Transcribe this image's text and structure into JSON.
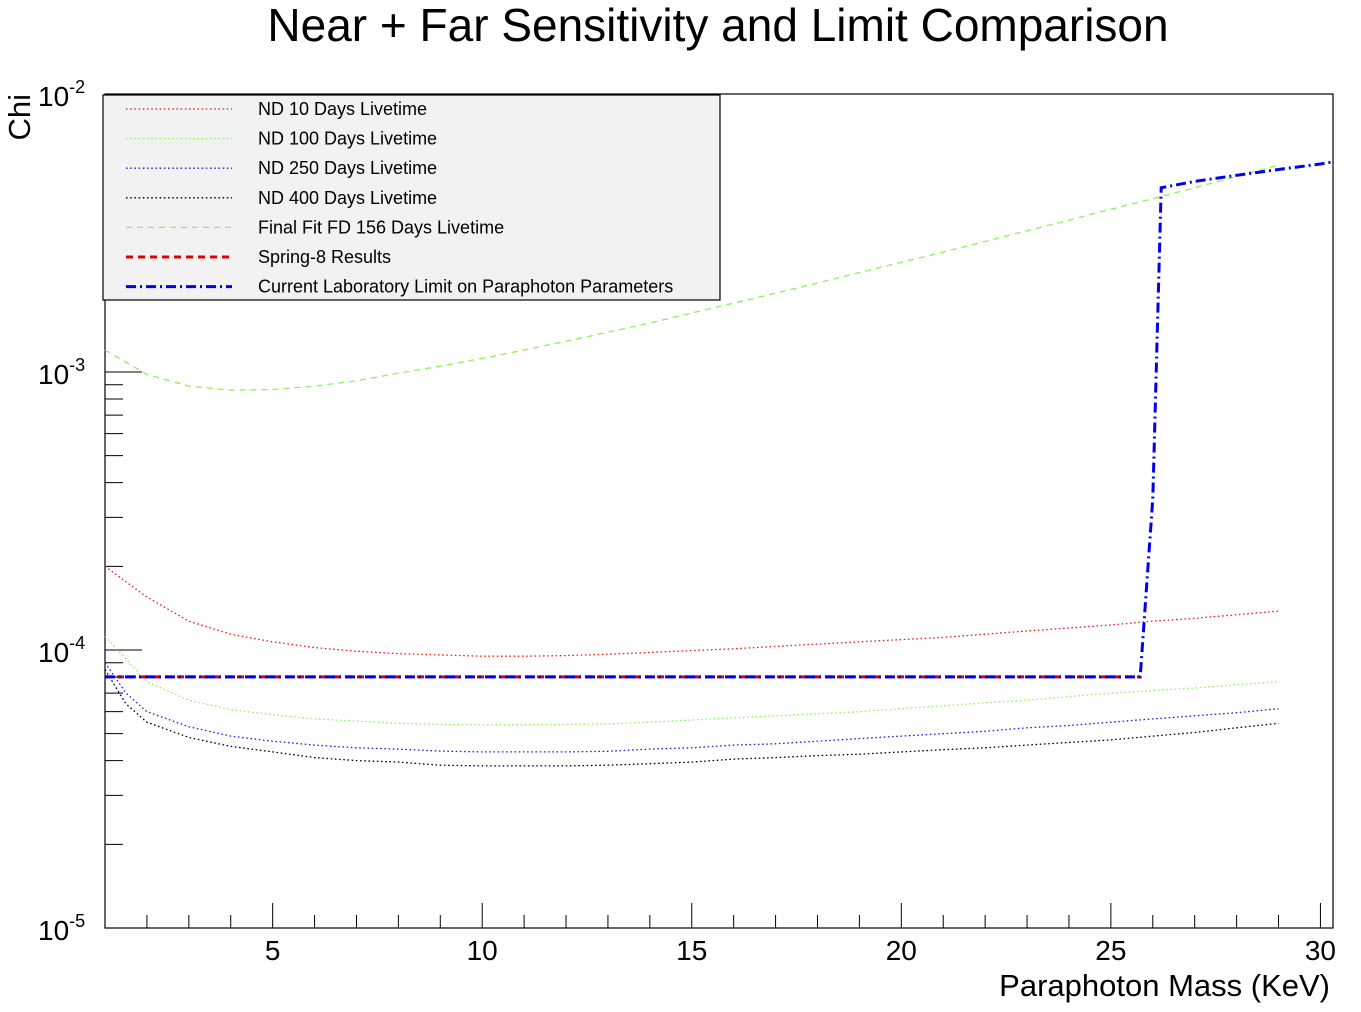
{
  "chart_data": {
    "type": "line",
    "title": "Near + Far Sensitivity and Limit Comparison",
    "xlabel": "Paraphoton Mass (KeV)",
    "ylabel": "Chi",
    "xlim": [
      1,
      30.3
    ],
    "ylim": [
      1e-05,
      0.01
    ],
    "yscale": "log",
    "grid": false,
    "legend_position": "top-left",
    "x_ticks": [
      {
        "value": 5,
        "label": "5"
      },
      {
        "value": 10,
        "label": "10"
      },
      {
        "value": 15,
        "label": "15"
      },
      {
        "value": 20,
        "label": "20"
      },
      {
        "value": 25,
        "label": "25"
      },
      {
        "value": 30,
        "label": "30"
      }
    ],
    "y_ticks": [
      {
        "value": 1e-05,
        "base": "10",
        "exp": "-5"
      },
      {
        "value": 0.0001,
        "base": "10",
        "exp": "-4"
      },
      {
        "value": 0.001,
        "base": "10",
        "exp": "-3"
      },
      {
        "value": 0.01,
        "base": "10",
        "exp": "-2"
      }
    ],
    "series": [
      {
        "name": "ND 10 Days Livetime",
        "color": "#e8211c",
        "dash": "dotted",
        "x": [
          1,
          2,
          3,
          4,
          5,
          6,
          7,
          8,
          9,
          10,
          11,
          12,
          13,
          14,
          15,
          16,
          17,
          18,
          19,
          20,
          21,
          22,
          23,
          24,
          25,
          26,
          27,
          28,
          29
        ],
        "y": [
          0.0002,
          0.000155,
          0.000127,
          0.000114,
          0.000107,
          0.000102,
          9.9e-05,
          9.7e-05,
          9.6e-05,
          9.5e-05,
          9.5e-05,
          9.55e-05,
          9.65e-05,
          9.8e-05,
          9.95e-05,
          0.000101,
          0.000103,
          0.000105,
          0.000107,
          0.000109,
          0.000111,
          0.000114,
          0.000117,
          0.00012,
          0.000123,
          0.000127,
          0.00013,
          0.000134,
          0.000138
        ]
      },
      {
        "name": "ND 100 Days Livetime",
        "color": "#8ff05a",
        "dash": "dotted",
        "x": [
          1,
          2,
          3,
          4,
          5,
          6,
          7,
          8,
          9,
          10,
          11,
          12,
          13,
          14,
          15,
          16,
          17,
          18,
          19,
          20,
          21,
          22,
          23,
          24,
          25,
          26,
          27,
          28,
          29
        ],
        "y": [
          0.000112,
          7.7e-05,
          6.6e-05,
          6.1e-05,
          5.85e-05,
          5.65e-05,
          5.55e-05,
          5.45e-05,
          5.4e-05,
          5.38e-05,
          5.38e-05,
          5.4e-05,
          5.42e-05,
          5.5e-05,
          5.6e-05,
          5.7e-05,
          5.8e-05,
          5.9e-05,
          6e-05,
          6.15e-05,
          6.3e-05,
          6.45e-05,
          6.6e-05,
          6.8e-05,
          7e-05,
          7.15e-05,
          7.3e-05,
          7.5e-05,
          7.7e-05
        ]
      },
      {
        "name": "ND 250 Days Livetime",
        "color": "#2020e8",
        "dash": "dotted",
        "x": [
          1,
          1.5,
          2,
          3,
          4,
          5,
          6,
          7,
          8,
          9,
          10,
          11,
          12,
          13,
          14,
          15,
          16,
          17,
          18,
          19,
          20,
          21,
          22,
          23,
          24,
          25,
          26,
          27,
          28,
          29
        ],
        "y": [
          9e-05,
          7e-05,
          6e-05,
          5.3e-05,
          4.9e-05,
          4.7e-05,
          4.55e-05,
          4.45e-05,
          4.4e-05,
          4.33e-05,
          4.3e-05,
          4.3e-05,
          4.3e-05,
          4.32e-05,
          4.4e-05,
          4.45e-05,
          4.55e-05,
          4.6e-05,
          4.7e-05,
          4.8e-05,
          4.9e-05,
          5e-05,
          5.1e-05,
          5.25e-05,
          5.35e-05,
          5.5e-05,
          5.65e-05,
          5.8e-05,
          5.95e-05,
          6.15e-05
        ]
      },
      {
        "name": "ND 400 Days Livetime",
        "color": "#000000",
        "dash": "dotted",
        "x": [
          1,
          1.5,
          2,
          3,
          4,
          5,
          6,
          7,
          8,
          9,
          10,
          11,
          12,
          13,
          14,
          15,
          16,
          17,
          18,
          19,
          20,
          21,
          22,
          23,
          24,
          25,
          26,
          27,
          28,
          29
        ],
        "y": [
          8.5e-05,
          6.4e-05,
          5.5e-05,
          4.85e-05,
          4.5e-05,
          4.3e-05,
          4.1e-05,
          4e-05,
          3.95e-05,
          3.85e-05,
          3.83e-05,
          3.83e-05,
          3.83e-05,
          3.85e-05,
          3.9e-05,
          3.95e-05,
          4.05e-05,
          4.1e-05,
          4.17e-05,
          4.22e-05,
          4.3e-05,
          4.38e-05,
          4.45e-05,
          4.55e-05,
          4.65e-05,
          4.75e-05,
          4.9e-05,
          5.05e-05,
          5.25e-05,
          5.45e-05
        ]
      },
      {
        "name": "Final Fit FD 156 Days Livetime",
        "color": "#8ff05a",
        "dash": "dashed",
        "x": [
          1,
          2,
          3,
          4,
          5,
          6,
          7,
          8,
          9,
          10,
          11,
          12,
          13,
          14,
          15,
          16,
          17,
          18,
          19,
          20,
          21,
          22,
          23,
          24,
          25,
          26,
          27,
          28,
          29
        ],
        "y": [
          0.0012,
          0.00098,
          0.00089,
          0.00086,
          0.000865,
          0.00089,
          0.00093,
          0.00099,
          0.00105,
          0.00112,
          0.0012,
          0.00129,
          0.00139,
          0.0015,
          0.00163,
          0.00177,
          0.00192,
          0.00209,
          0.00228,
          0.00248,
          0.0027,
          0.00295,
          0.00322,
          0.00352,
          0.00385,
          0.0042,
          0.0046,
          0.00505,
          0.00555
        ]
      },
      {
        "name": "Spring-8 Results",
        "color": "#dd0000",
        "dash": "thick-dashed",
        "x": [
          1,
          25.7
        ],
        "y": [
          8e-05,
          8e-05
        ]
      },
      {
        "name": "Current Laboratory Limit on Paraphoton Parameters",
        "color": "#0000ee",
        "dash": "dashdot",
        "x": [
          1,
          25.7,
          26.0,
          26.2,
          27,
          28,
          29,
          30,
          30.3
        ],
        "y": [
          8e-05,
          8e-05,
          0.00035,
          0.0046,
          0.00485,
          0.0051,
          0.00535,
          0.0056,
          0.0057
        ]
      }
    ]
  }
}
